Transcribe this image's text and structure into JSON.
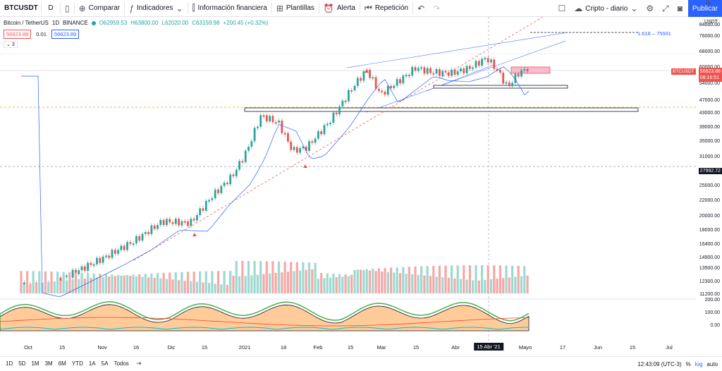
{
  "toolbar": {
    "symbol": "BTCUSDT",
    "interval": "D",
    "compare": "Comparar",
    "indicators": "Indicadores",
    "financial": "Información financiera",
    "templates": "Plantillas",
    "alert": "Alerta",
    "replay": "Repetición",
    "layout_name": "Cripto - diario",
    "publish": "Publicar"
  },
  "legend": {
    "title": "Bitcoin / TetherUS",
    "interval": "1D",
    "exchange": "BINANCE",
    "open": "O62959.53",
    "high": "H63800.00",
    "low": "L62020.00",
    "close": "C63159.98",
    "change": "+200.45 (+0.32%)"
  },
  "badges": {
    "sell": "56623.88",
    "spread": "0.01",
    "buy": "56623.89",
    "collapse": "3"
  },
  "currency": "USDT",
  "price_axis": [
    "84000.00",
    "76000.00",
    "68000.00",
    "60000.00",
    "54000.00",
    "47000.00",
    "43000.00",
    "39000.00",
    "35000.00",
    "31000.00",
    "27992.72",
    "25000.00",
    "22000.00",
    "20000.00",
    "18000.00",
    "16400.00",
    "14900.00",
    "13500.00",
    "12300.00",
    "11200.00"
  ],
  "osc_axis": [
    "200.00",
    "100.00",
    "0.00"
  ],
  "fib_label": "1.618 – 75931",
  "current_tag": {
    "symbol": "BTCUSDT",
    "price": "56623.88",
    "timer": "08:16:51"
  },
  "level_tag": "27992.72",
  "time_axis": [
    "Oct",
    "15",
    "Nov",
    "16",
    "Dic",
    "15",
    "2021",
    "18",
    "Feb",
    "15",
    "Mar",
    "15",
    "Abr",
    "15 Abr '21",
    "Mayo",
    "17",
    "Jun",
    "15",
    "Jul"
  ],
  "bottom": {
    "ranges": [
      "1D",
      "5D",
      "1M",
      "3M",
      "6M",
      "YTD",
      "1A",
      "5A",
      "Todos"
    ],
    "clock": "12:43:09 (UTC-3)",
    "pct": "%",
    "log": "log",
    "auto": "auto"
  },
  "colors": {
    "up": "#26a69a",
    "down": "#ef5350",
    "accent": "#2962ff"
  }
}
